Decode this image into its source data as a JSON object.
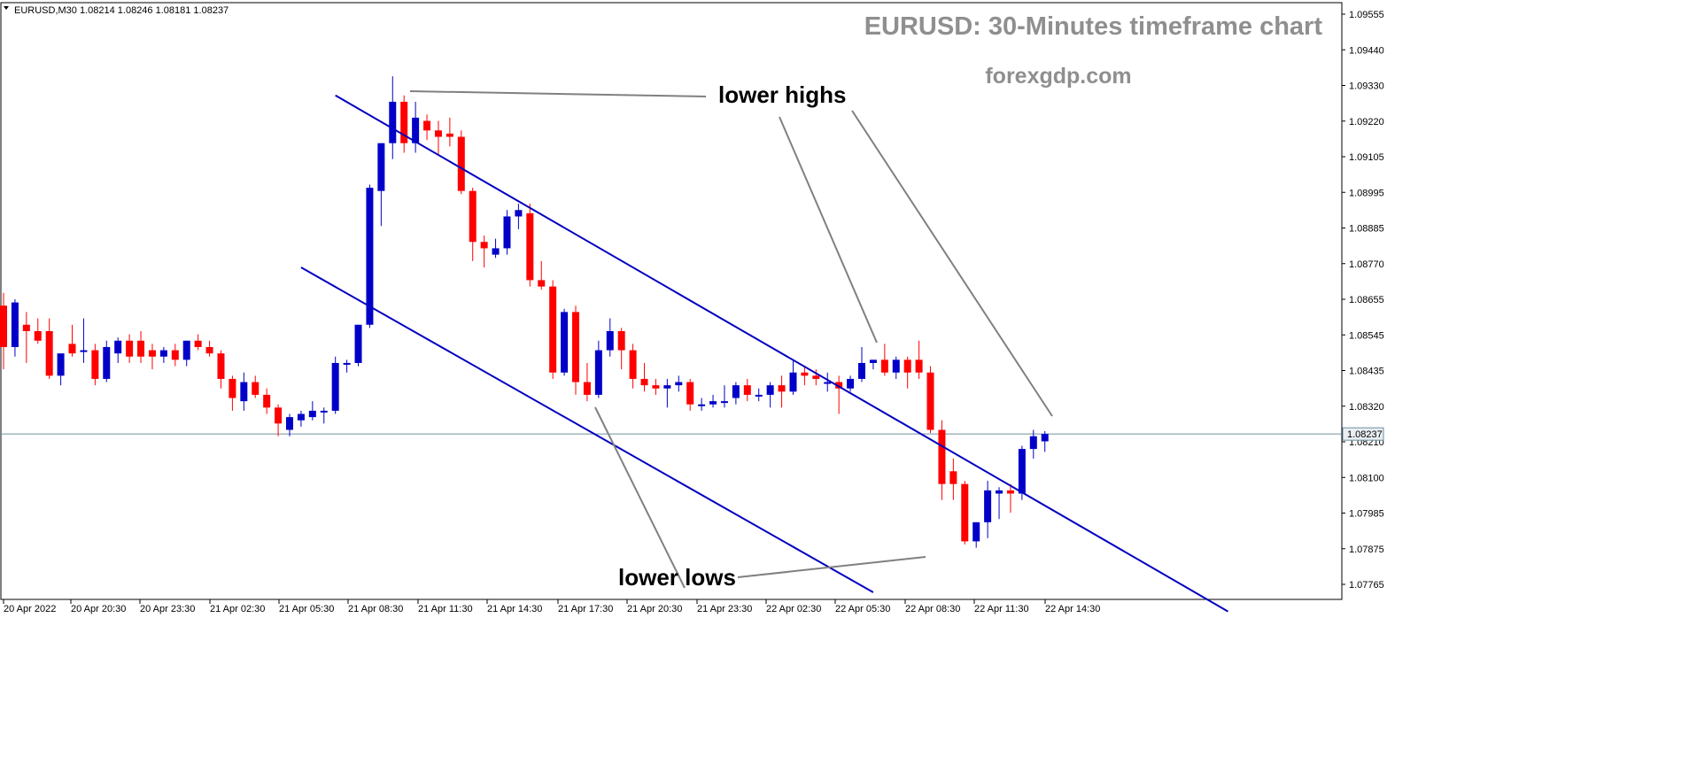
{
  "chart_data": {
    "type": "candlestick",
    "symbol_header": "EURUSD,M30  1.08214 1.08246 1.08181 1.08237",
    "title": "EURUSD: 30-Minutes timeframe chart",
    "subtitle": "forexgdp.com",
    "y_ticks": [
      "1.09555",
      "1.09440",
      "1.09330",
      "1.09220",
      "1.09105",
      "1.08995",
      "1.08885",
      "1.08770",
      "1.08655",
      "1.08545",
      "1.08435",
      "1.08320",
      "1.08210",
      "1.08100",
      "1.07985",
      "1.07875",
      "1.07765"
    ],
    "x_ticks": [
      "20 Apr 2022",
      "20 Apr 20:30",
      "20 Apr 23:30",
      "21 Apr 02:30",
      "21 Apr 05:30",
      "21 Apr 08:30",
      "21 Apr 11:30",
      "21 Apr 14:30",
      "21 Apr 17:30",
      "21 Apr 20:30",
      "21 Apr 23:30",
      "22 Apr 02:30",
      "22 Apr 05:30",
      "22 Apr 08:30",
      "22 Apr 11:30",
      "22 Apr 14:30"
    ],
    "ylim": [
      1.0774,
      1.09565
    ],
    "current_price": "1.08237",
    "current_price_value": 1.08237,
    "annotations": {
      "upper": "lower highs",
      "lower": "lower lows"
    },
    "colors": {
      "bull": "#0000c8",
      "bear": "#ff0000",
      "channel": "#0000c0",
      "pointer": "#808080",
      "price_line": "#6f8fa0",
      "watermark": "#8f8f8f"
    },
    "channel": {
      "upper": {
        "start": {
          "bar": 29,
          "price": 1.093
        },
        "end": {
          "bar": 107,
          "price": 1.0768
        }
      },
      "lower": {
        "start": {
          "bar": 26,
          "price": 1.0876
        },
        "end": {
          "bar": 76,
          "price": 1.0774
        }
      }
    },
    "candles": [
      {
        "o": 1.0864,
        "h": 1.0868,
        "l": 1.0844,
        "c": 1.0851
      },
      {
        "o": 1.0851,
        "h": 1.0866,
        "l": 1.0848,
        "c": 1.0865
      },
      {
        "o": 1.0858,
        "h": 1.0862,
        "l": 1.0846,
        "c": 1.0856
      },
      {
        "o": 1.0856,
        "h": 1.086,
        "l": 1.0852,
        "c": 1.0853
      },
      {
        "o": 1.0856,
        "h": 1.086,
        "l": 1.0841,
        "c": 1.0842
      },
      {
        "o": 1.0842,
        "h": 1.0848,
        "l": 1.0839,
        "c": 1.0849
      },
      {
        "o": 1.0852,
        "h": 1.0858,
        "l": 1.0848,
        "c": 1.0849
      },
      {
        "o": 1.085,
        "h": 1.086,
        "l": 1.0846,
        "c": 1.085
      },
      {
        "o": 1.085,
        "h": 1.0852,
        "l": 1.0839,
        "c": 1.0841
      },
      {
        "o": 1.0841,
        "h": 1.0853,
        "l": 1.084,
        "c": 1.0851
      },
      {
        "o": 1.0849,
        "h": 1.0854,
        "l": 1.0846,
        "c": 1.0853
      },
      {
        "o": 1.0853,
        "h": 1.0855,
        "l": 1.0846,
        "c": 1.0848
      },
      {
        "o": 1.0853,
        "h": 1.0856,
        "l": 1.0846,
        "c": 1.0848
      },
      {
        "o": 1.085,
        "h": 1.0852,
        "l": 1.0844,
        "c": 1.0848
      },
      {
        "o": 1.0848,
        "h": 1.0851,
        "l": 1.0846,
        "c": 1.085
      },
      {
        "o": 1.085,
        "h": 1.0852,
        "l": 1.0845,
        "c": 1.0847
      },
      {
        "o": 1.0847,
        "h": 1.0853,
        "l": 1.0845,
        "c": 1.0853
      },
      {
        "o": 1.0853,
        "h": 1.0855,
        "l": 1.085,
        "c": 1.0851
      },
      {
        "o": 1.0851,
        "h": 1.0853,
        "l": 1.0848,
        "c": 1.0849
      },
      {
        "o": 1.0849,
        "h": 1.085,
        "l": 1.0838,
        "c": 1.0841
      },
      {
        "o": 1.0841,
        "h": 1.0842,
        "l": 1.0831,
        "c": 1.0835
      },
      {
        "o": 1.0834,
        "h": 1.0843,
        "l": 1.0831,
        "c": 1.084
      },
      {
        "o": 1.084,
        "h": 1.0842,
        "l": 1.0835,
        "c": 1.0836
      },
      {
        "o": 1.0836,
        "h": 1.0838,
        "l": 1.083,
        "c": 1.0832
      },
      {
        "o": 1.0832,
        "h": 1.0833,
        "l": 1.0823,
        "c": 1.0827
      },
      {
        "o": 1.0825,
        "h": 1.083,
        "l": 1.0823,
        "c": 1.0829
      },
      {
        "o": 1.0828,
        "h": 1.0831,
        "l": 1.0826,
        "c": 1.083
      },
      {
        "o": 1.0829,
        "h": 1.0834,
        "l": 1.0828,
        "c": 1.0831
      },
      {
        "o": 1.0831,
        "h": 1.0832,
        "l": 1.0827,
        "c": 1.0831
      },
      {
        "o": 1.0831,
        "h": 1.0848,
        "l": 1.083,
        "c": 1.0846
      },
      {
        "o": 1.0846,
        "h": 1.0847,
        "l": 1.0843,
        "c": 1.0846
      },
      {
        "o": 1.0846,
        "h": 1.0858,
        "l": 1.0845,
        "c": 1.0858
      },
      {
        "o": 1.0858,
        "h": 1.0902,
        "l": 1.0857,
        "c": 1.0901
      },
      {
        "o": 1.09,
        "h": 1.0915,
        "l": 1.0889,
        "c": 1.0915
      },
      {
        "o": 1.0915,
        "h": 1.0936,
        "l": 1.091,
        "c": 1.0928
      },
      {
        "o": 1.0928,
        "h": 1.093,
        "l": 1.0912,
        "c": 1.0915
      },
      {
        "o": 1.0915,
        "h": 1.0928,
        "l": 1.0912,
        "c": 1.0923
      },
      {
        "o": 1.0922,
        "h": 1.0924,
        "l": 1.0916,
        "c": 1.0919
      },
      {
        "o": 1.0919,
        "h": 1.0922,
        "l": 1.0911,
        "c": 1.0917
      },
      {
        "o": 1.0918,
        "h": 1.0923,
        "l": 1.0914,
        "c": 1.0917
      },
      {
        "o": 1.0917,
        "h": 1.0919,
        "l": 1.0899,
        "c": 1.09
      },
      {
        "o": 1.09,
        "h": 1.0901,
        "l": 1.0878,
        "c": 1.0884
      },
      {
        "o": 1.0884,
        "h": 1.0886,
        "l": 1.0876,
        "c": 1.0882
      },
      {
        "o": 1.088,
        "h": 1.0885,
        "l": 1.0879,
        "c": 1.0882
      },
      {
        "o": 1.0882,
        "h": 1.0894,
        "l": 1.088,
        "c": 1.0892
      },
      {
        "o": 1.0892,
        "h": 1.0896,
        "l": 1.0888,
        "c": 1.0894
      },
      {
        "o": 1.0893,
        "h": 1.0896,
        "l": 1.087,
        "c": 1.0872
      },
      {
        "o": 1.0872,
        "h": 1.0878,
        "l": 1.0869,
        "c": 1.087
      },
      {
        "o": 1.087,
        "h": 1.0872,
        "l": 1.0841,
        "c": 1.0843
      },
      {
        "o": 1.0843,
        "h": 1.0863,
        "l": 1.0842,
        "c": 1.0862
      },
      {
        "o": 1.0862,
        "h": 1.0864,
        "l": 1.0836,
        "c": 1.084
      },
      {
        "o": 1.084,
        "h": 1.0846,
        "l": 1.0834,
        "c": 1.0836
      },
      {
        "o": 1.0836,
        "h": 1.0853,
        "l": 1.0835,
        "c": 1.085
      },
      {
        "o": 1.085,
        "h": 1.086,
        "l": 1.0848,
        "c": 1.0856
      },
      {
        "o": 1.0856,
        "h": 1.0857,
        "l": 1.0844,
        "c": 1.085
      },
      {
        "o": 1.085,
        "h": 1.0852,
        "l": 1.0838,
        "c": 1.0841
      },
      {
        "o": 1.0841,
        "h": 1.0846,
        "l": 1.0837,
        "c": 1.0839
      },
      {
        "o": 1.0839,
        "h": 1.0841,
        "l": 1.0836,
        "c": 1.0838
      },
      {
        "o": 1.0838,
        "h": 1.0841,
        "l": 1.0832,
        "c": 1.0839
      },
      {
        "o": 1.0839,
        "h": 1.0842,
        "l": 1.0837,
        "c": 1.084
      },
      {
        "o": 1.084,
        "h": 1.0841,
        "l": 1.0831,
        "c": 1.0833
      },
      {
        "o": 1.0833,
        "h": 1.0835,
        "l": 1.0831,
        "c": 1.0833
      },
      {
        "o": 1.0833,
        "h": 1.0836,
        "l": 1.0832,
        "c": 1.0834
      },
      {
        "o": 1.0834,
        "h": 1.0839,
        "l": 1.0832,
        "c": 1.0834
      },
      {
        "o": 1.0835,
        "h": 1.084,
        "l": 1.0833,
        "c": 1.0839
      },
      {
        "o": 1.0839,
        "h": 1.0841,
        "l": 1.0834,
        "c": 1.0836
      },
      {
        "o": 1.0836,
        "h": 1.0838,
        "l": 1.0834,
        "c": 1.0836
      },
      {
        "o": 1.0836,
        "h": 1.084,
        "l": 1.0832,
        "c": 1.0839
      },
      {
        "o": 1.0839,
        "h": 1.0842,
        "l": 1.0832,
        "c": 1.0837
      },
      {
        "o": 1.0837,
        "h": 1.0847,
        "l": 1.0836,
        "c": 1.0843
      },
      {
        "o": 1.0843,
        "h": 1.0845,
        "l": 1.0839,
        "c": 1.0842
      },
      {
        "o": 1.0842,
        "h": 1.0844,
        "l": 1.0839,
        "c": 1.0841
      },
      {
        "o": 1.084,
        "h": 1.0843,
        "l": 1.0837,
        "c": 1.084
      },
      {
        "o": 1.084,
        "h": 1.0842,
        "l": 1.083,
        "c": 1.0838
      },
      {
        "o": 1.0838,
        "h": 1.0842,
        "l": 1.0837,
        "c": 1.0841
      },
      {
        "o": 1.0841,
        "h": 1.0851,
        "l": 1.084,
        "c": 1.0846
      },
      {
        "o": 1.0846,
        "h": 1.0847,
        "l": 1.0844,
        "c": 1.0847
      },
      {
        "o": 1.0847,
        "h": 1.0852,
        "l": 1.0842,
        "c": 1.0843
      },
      {
        "o": 1.0843,
        "h": 1.0848,
        "l": 1.0841,
        "c": 1.0847
      },
      {
        "o": 1.0847,
        "h": 1.0848,
        "l": 1.0838,
        "c": 1.0843
      },
      {
        "o": 1.0847,
        "h": 1.0853,
        "l": 1.0841,
        "c": 1.0843
      },
      {
        "o": 1.0843,
        "h": 1.0845,
        "l": 1.0824,
        "c": 1.0825
      },
      {
        "o": 1.0825,
        "h": 1.0828,
        "l": 1.0803,
        "c": 1.0808
      },
      {
        "o": 1.0812,
        "h": 1.0816,
        "l": 1.0803,
        "c": 1.0808
      },
      {
        "o": 1.0808,
        "h": 1.0809,
        "l": 1.0789,
        "c": 1.079
      },
      {
        "o": 1.079,
        "h": 1.0796,
        "l": 1.0788,
        "c": 1.0796
      },
      {
        "o": 1.0796,
        "h": 1.0809,
        "l": 1.0791,
        "c": 1.0806
      },
      {
        "o": 1.0805,
        "h": 1.0807,
        "l": 1.0797,
        "c": 1.0806
      },
      {
        "o": 1.0806,
        "h": 1.0808,
        "l": 1.0799,
        "c": 1.0805
      },
      {
        "o": 1.0805,
        "h": 1.082,
        "l": 1.0803,
        "c": 1.0819
      },
      {
        "o": 1.0819,
        "h": 1.0825,
        "l": 1.0816,
        "c": 1.0823
      },
      {
        "o": 1.08214,
        "h": 1.08246,
        "l": 1.08181,
        "c": 1.08237
      }
    ]
  }
}
